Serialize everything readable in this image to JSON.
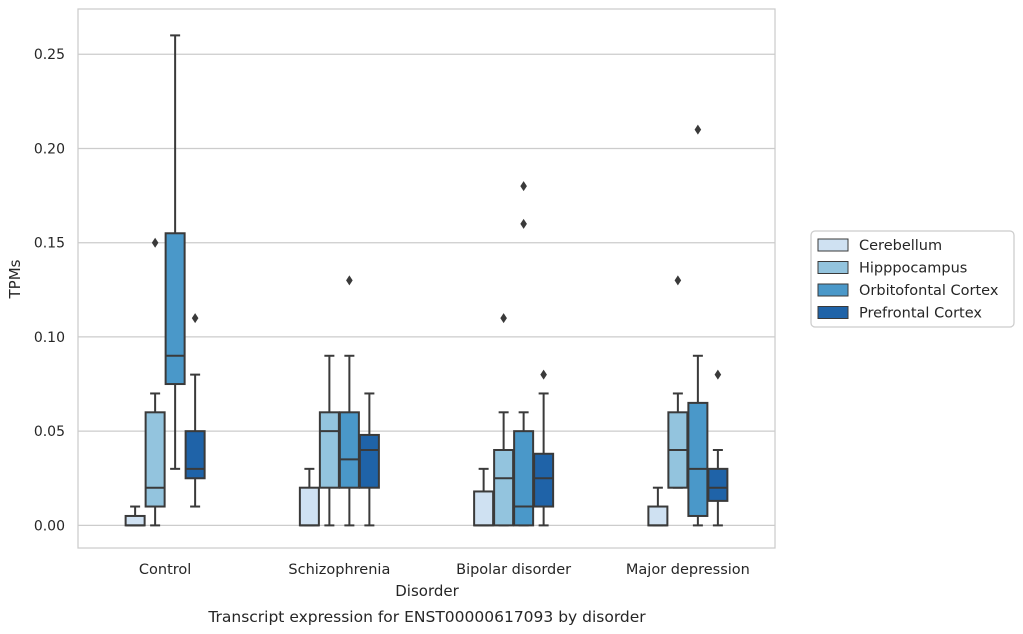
{
  "chart_data": {
    "type": "box",
    "xlabel": "Disorder",
    "ylabel": "TPMs",
    "caption": "Transcript expression for ENST00000617093 by disorder",
    "ylim": [
      -0.012,
      0.274
    ],
    "yticks": [
      {
        "value": 0.0,
        "label": "0.00"
      },
      {
        "value": 0.05,
        "label": "0.05"
      },
      {
        "value": 0.1,
        "label": "0.10"
      },
      {
        "value": 0.15,
        "label": "0.15"
      },
      {
        "value": 0.2,
        "label": "0.20"
      },
      {
        "value": 0.25,
        "label": "0.25"
      }
    ],
    "grid": "horizontal",
    "legend_position": "right",
    "categories": [
      "Control",
      "Schizophrenia",
      "Bipolar disorder",
      "Major depression"
    ],
    "series": [
      {
        "name": "Cerebellum",
        "color": "#cfe1f2",
        "boxes": [
          {
            "whislo": 0.0,
            "q1": 0.0,
            "med": 0.0,
            "q3": 0.005,
            "whishi": 0.01,
            "fliers": []
          },
          {
            "whislo": 0.0,
            "q1": 0.0,
            "med": 0.0,
            "q3": 0.02,
            "whishi": 0.03,
            "fliers": []
          },
          {
            "whislo": 0.0,
            "q1": 0.0,
            "med": 0.0,
            "q3": 0.018,
            "whishi": 0.03,
            "fliers": []
          },
          {
            "whislo": 0.0,
            "q1": 0.0,
            "med": 0.0,
            "q3": 0.01,
            "whishi": 0.02,
            "fliers": []
          }
        ]
      },
      {
        "name": "Hipppocampus",
        "color": "#93c4de",
        "boxes": [
          {
            "whislo": 0.0,
            "q1": 0.01,
            "med": 0.02,
            "q3": 0.06,
            "whishi": 0.07,
            "fliers": [
              0.15
            ]
          },
          {
            "whislo": 0.0,
            "q1": 0.02,
            "med": 0.05,
            "q3": 0.06,
            "whishi": 0.09,
            "fliers": []
          },
          {
            "whislo": 0.0,
            "q1": 0.0,
            "med": 0.025,
            "q3": 0.04,
            "whishi": 0.06,
            "fliers": [
              0.11
            ]
          },
          {
            "whislo": 0.02,
            "q1": 0.02,
            "med": 0.04,
            "q3": 0.06,
            "whishi": 0.07,
            "fliers": [
              0.13
            ]
          }
        ]
      },
      {
        "name": "Orbitofontal Cortex",
        "color": "#4a98c9",
        "boxes": [
          {
            "whislo": 0.03,
            "q1": 0.075,
            "med": 0.09,
            "q3": 0.155,
            "whishi": 0.26,
            "fliers": []
          },
          {
            "whislo": 0.0,
            "q1": 0.02,
            "med": 0.035,
            "q3": 0.06,
            "whishi": 0.09,
            "fliers": [
              0.13
            ]
          },
          {
            "whislo": 0.0,
            "q1": 0.0,
            "med": 0.01,
            "q3": 0.05,
            "whishi": 0.06,
            "fliers": [
              0.16,
              0.18
            ]
          },
          {
            "whislo": 0.0,
            "q1": 0.005,
            "med": 0.03,
            "q3": 0.065,
            "whishi": 0.09,
            "fliers": [
              0.21
            ]
          }
        ]
      },
      {
        "name": "Prefrontal Cortex",
        "color": "#1f63a8",
        "boxes": [
          {
            "whislo": 0.01,
            "q1": 0.025,
            "med": 0.03,
            "q3": 0.05,
            "whishi": 0.08,
            "fliers": [
              0.11
            ]
          },
          {
            "whislo": 0.0,
            "q1": 0.02,
            "med": 0.04,
            "q3": 0.048,
            "whishi": 0.07,
            "fliers": []
          },
          {
            "whislo": 0.0,
            "q1": 0.01,
            "med": 0.025,
            "q3": 0.038,
            "whishi": 0.07,
            "fliers": [
              0.08
            ]
          },
          {
            "whislo": 0.0,
            "q1": 0.013,
            "med": 0.02,
            "q3": 0.03,
            "whishi": 0.04,
            "fliers": [
              0.08
            ]
          }
        ]
      }
    ]
  }
}
